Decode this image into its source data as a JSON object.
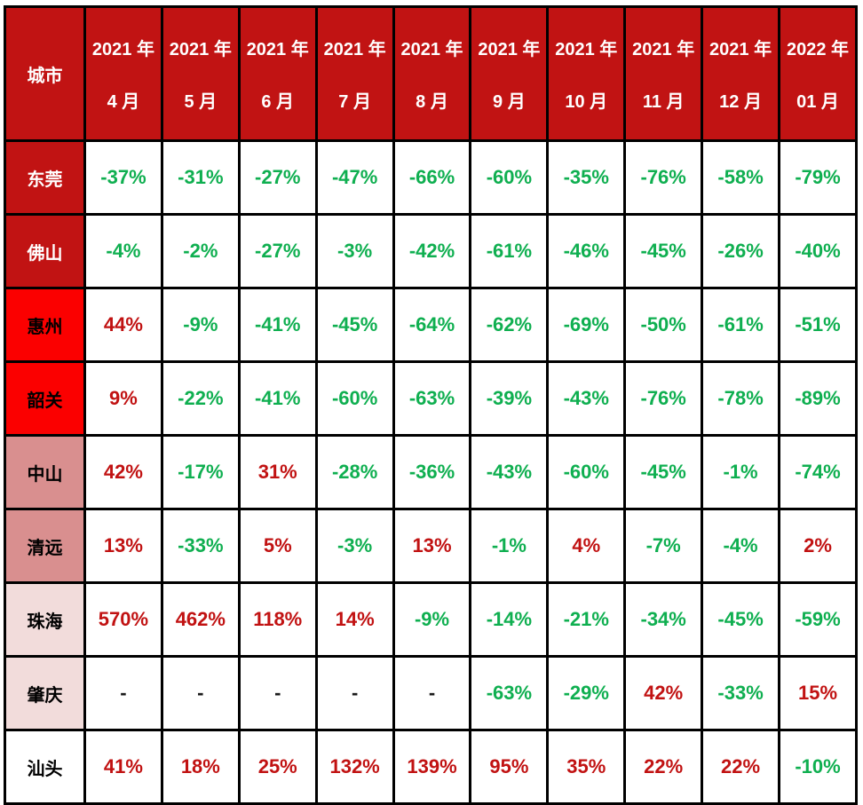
{
  "colors": {
    "border": "#000000",
    "header_bg": "#C11313",
    "header_text": "#FFFFFF",
    "positive_text": "#C11212",
    "negative_text": "#0FAF50",
    "dash_text": "#1A1A1A"
  },
  "table": {
    "header": {
      "city_label": "城市",
      "columns": [
        {
          "year": "2021 年",
          "month": "4 月"
        },
        {
          "year": "2021 年",
          "month": "5 月"
        },
        {
          "year": "2021 年",
          "month": "6 月"
        },
        {
          "year": "2021 年",
          "month": "7 月"
        },
        {
          "year": "2021 年",
          "month": "8 月"
        },
        {
          "year": "2021 年",
          "month": "9 月"
        },
        {
          "year": "2021 年",
          "month": "10 月"
        },
        {
          "year": "2021 年",
          "month": "11 月"
        },
        {
          "year": "2021 年",
          "month": "12 月"
        },
        {
          "year": "2022 年",
          "month": "01 月"
        }
      ]
    },
    "rows": [
      {
        "city": "东莞",
        "city_bg": "#C11313",
        "city_color": "#FFFFFF",
        "values": [
          "-37%",
          "-31%",
          "-27%",
          "-47%",
          "-66%",
          "-60%",
          "-35%",
          "-76%",
          "-58%",
          "-79%"
        ]
      },
      {
        "city": "佛山",
        "city_bg": "#C11313",
        "city_color": "#FFFFFF",
        "values": [
          "-4%",
          "-2%",
          "-27%",
          "-3%",
          "-42%",
          "-61%",
          "-46%",
          "-45%",
          "-26%",
          "-40%"
        ]
      },
      {
        "city": "惠州",
        "city_bg": "#FB0000",
        "city_color": "#000000",
        "values": [
          "44%",
          "-9%",
          "-41%",
          "-45%",
          "-64%",
          "-62%",
          "-69%",
          "-50%",
          "-61%",
          "-51%"
        ]
      },
      {
        "city": "韶关",
        "city_bg": "#FB0000",
        "city_color": "#000000",
        "values": [
          "9%",
          "-22%",
          "-41%",
          "-60%",
          "-63%",
          "-39%",
          "-43%",
          "-76%",
          "-78%",
          "-89%"
        ]
      },
      {
        "city": "中山",
        "city_bg": "#D98F8F",
        "city_color": "#000000",
        "values": [
          "42%",
          "-17%",
          "31%",
          "-28%",
          "-36%",
          "-43%",
          "-60%",
          "-45%",
          "-1%",
          "-74%"
        ]
      },
      {
        "city": "清远",
        "city_bg": "#D98F8F",
        "city_color": "#000000",
        "values": [
          "13%",
          "-33%",
          "5%",
          "-3%",
          "13%",
          "-1%",
          "4%",
          "-7%",
          "-4%",
          "2%"
        ]
      },
      {
        "city": "珠海",
        "city_bg": "#F2DCDB",
        "city_color": "#000000",
        "values": [
          "570%",
          "462%",
          "118%",
          "14%",
          "-9%",
          "-14%",
          "-21%",
          "-34%",
          "-45%",
          "-59%"
        ]
      },
      {
        "city": "肇庆",
        "city_bg": "#F2DCDB",
        "city_color": "#000000",
        "values": [
          "-",
          "-",
          "-",
          "-",
          "-",
          "-63%",
          "-29%",
          "42%",
          "-33%",
          "15%"
        ]
      },
      {
        "city": "汕头",
        "city_bg": "#FFFFFF",
        "city_color": "#000000",
        "values": [
          "41%",
          "18%",
          "25%",
          "132%",
          "139%",
          "95%",
          "35%",
          "22%",
          "22%",
          "-10%"
        ]
      }
    ]
  },
  "chart_data": {
    "type": "table",
    "title": "",
    "columns": [
      "城市",
      "2021 年 4 月",
      "2021 年 5 月",
      "2021 年 6 月",
      "2021 年 7 月",
      "2021 年 8 月",
      "2021 年 9 月",
      "2021 年 10 月",
      "2021 年 11 月",
      "2021 年 12 月",
      "2022 年 01 月"
    ],
    "rows": [
      [
        "东莞",
        "-37%",
        "-31%",
        "-27%",
        "-47%",
        "-66%",
        "-60%",
        "-35%",
        "-76%",
        "-58%",
        "-79%"
      ],
      [
        "佛山",
        "-4%",
        "-2%",
        "-27%",
        "-3%",
        "-42%",
        "-61%",
        "-46%",
        "-45%",
        "-26%",
        "-40%"
      ],
      [
        "惠州",
        "44%",
        "-9%",
        "-41%",
        "-45%",
        "-64%",
        "-62%",
        "-69%",
        "-50%",
        "-61%",
        "-51%"
      ],
      [
        "韶关",
        "9%",
        "-22%",
        "-41%",
        "-60%",
        "-63%",
        "-39%",
        "-43%",
        "-76%",
        "-78%",
        "-89%"
      ],
      [
        "中山",
        "42%",
        "-17%",
        "31%",
        "-28%",
        "-36%",
        "-43%",
        "-60%",
        "-45%",
        "-1%",
        "-74%"
      ],
      [
        "清远",
        "13%",
        "-33%",
        "5%",
        "-3%",
        "13%",
        "-1%",
        "4%",
        "-7%",
        "-4%",
        "2%"
      ],
      [
        "珠海",
        "570%",
        "462%",
        "118%",
        "14%",
        "-9%",
        "-14%",
        "-21%",
        "-34%",
        "-45%",
        "-59%"
      ],
      [
        "肇庆",
        "-",
        "-",
        "-",
        "-",
        "-",
        "-63%",
        "-29%",
        "42%",
        "-33%",
        "15%"
      ],
      [
        "汕头",
        "41%",
        "18%",
        "25%",
        "132%",
        "139%",
        "95%",
        "35%",
        "22%",
        "22%",
        "-10%"
      ]
    ],
    "legend_note": "negative values shown green, positive values shown red, missing data shown as dash"
  }
}
